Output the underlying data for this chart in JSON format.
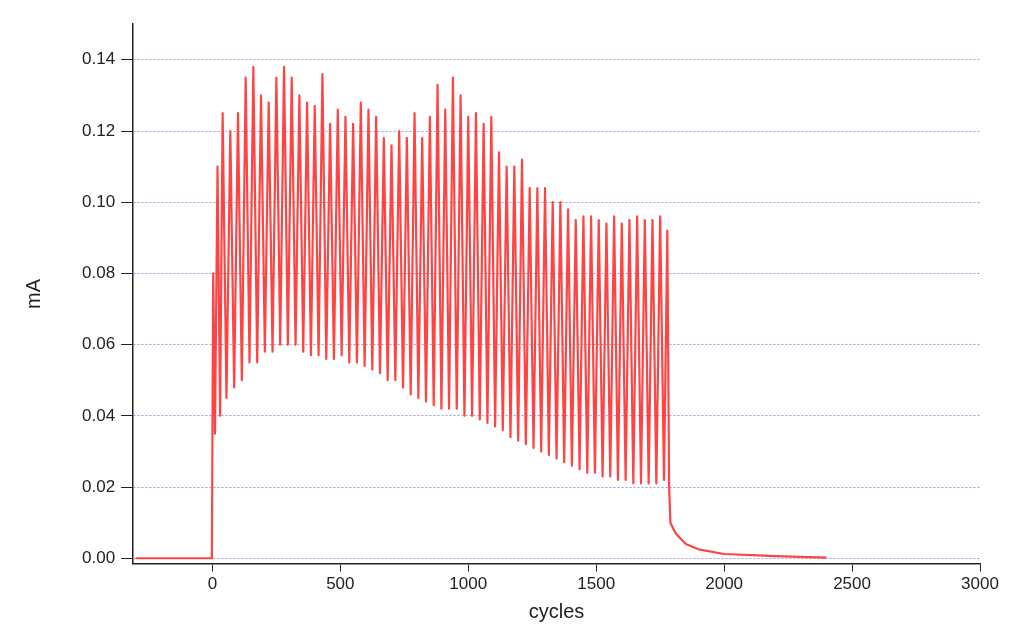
{
  "chart_data": {
    "type": "line",
    "xlabel": "cycles",
    "ylabel": "mA",
    "xlim": [
      -310,
      3000
    ],
    "xticks": [
      0,
      500,
      1000,
      1500,
      2000,
      2500,
      3000
    ],
    "ylim": [
      -0.0015,
      0.15
    ],
    "yticks": [
      {
        "value": 0,
        "label": "0.00"
      },
      {
        "value": 0.02,
        "label": "0.02"
      },
      {
        "value": 0.04,
        "label": "0.04"
      },
      {
        "value": 0.06,
        "label": "0.06"
      },
      {
        "value": 0.08,
        "label": "0.08"
      },
      {
        "value": 0.1,
        "label": "0.10"
      },
      {
        "value": 0.12,
        "label": "0.12"
      },
      {
        "value": 0.14,
        "label": "0.14"
      }
    ],
    "grid": "y",
    "legend": false,
    "marker": "none",
    "line_style": "solid",
    "series": [
      {
        "color": "#ff4444",
        "x": [
          -300,
          -2,
          3,
          10,
          20,
          30,
          40,
          55,
          70,
          85,
          100,
          115,
          130,
          145,
          160,
          175,
          190,
          205,
          220,
          235,
          250,
          265,
          280,
          295,
          310,
          325,
          340,
          355,
          370,
          385,
          400,
          415,
          430,
          445,
          460,
          475,
          490,
          505,
          520,
          535,
          550,
          565,
          580,
          595,
          610,
          625,
          640,
          655,
          670,
          685,
          700,
          715,
          730,
          745,
          760,
          775,
          790,
          805,
          820,
          835,
          850,
          865,
          880,
          895,
          910,
          925,
          940,
          955,
          970,
          985,
          1000,
          1015,
          1030,
          1045,
          1060,
          1075,
          1090,
          1105,
          1120,
          1135,
          1150,
          1165,
          1180,
          1195,
          1210,
          1225,
          1240,
          1255,
          1270,
          1285,
          1300,
          1315,
          1330,
          1345,
          1360,
          1375,
          1390,
          1405,
          1420,
          1435,
          1450,
          1465,
          1480,
          1495,
          1510,
          1525,
          1540,
          1555,
          1570,
          1585,
          1600,
          1615,
          1630,
          1645,
          1660,
          1675,
          1690,
          1705,
          1720,
          1735,
          1750,
          1765,
          1778,
          1785,
          1790,
          1810,
          1850,
          1900,
          2000,
          2200,
          2400
        ],
        "values": [
          0,
          0,
          0.08,
          0.035,
          0.11,
          0.04,
          0.125,
          0.045,
          0.12,
          0.048,
          0.125,
          0.05,
          0.135,
          0.055,
          0.138,
          0.055,
          0.13,
          0.058,
          0.128,
          0.058,
          0.135,
          0.06,
          0.138,
          0.06,
          0.135,
          0.06,
          0.13,
          0.058,
          0.128,
          0.057,
          0.127,
          0.057,
          0.136,
          0.056,
          0.122,
          0.056,
          0.126,
          0.057,
          0.124,
          0.055,
          0.122,
          0.055,
          0.128,
          0.054,
          0.126,
          0.053,
          0.124,
          0.052,
          0.118,
          0.05,
          0.116,
          0.05,
          0.12,
          0.048,
          0.118,
          0.046,
          0.125,
          0.045,
          0.118,
          0.044,
          0.124,
          0.043,
          0.133,
          0.042,
          0.126,
          0.042,
          0.135,
          0.042,
          0.13,
          0.04,
          0.124,
          0.04,
          0.125,
          0.039,
          0.122,
          0.038,
          0.124,
          0.037,
          0.114,
          0.036,
          0.11,
          0.034,
          0.11,
          0.033,
          0.112,
          0.032,
          0.104,
          0.031,
          0.104,
          0.03,
          0.104,
          0.029,
          0.1,
          0.028,
          0.1,
          0.027,
          0.098,
          0.026,
          0.095,
          0.025,
          0.096,
          0.024,
          0.096,
          0.024,
          0.095,
          0.023,
          0.094,
          0.023,
          0.096,
          0.022,
          0.094,
          0.022,
          0.095,
          0.021,
          0.096,
          0.021,
          0.095,
          0.021,
          0.095,
          0.021,
          0.096,
          0.022,
          0.092,
          0.02,
          0.01,
          0.007,
          0.004,
          0.0025,
          0.0012,
          0.0006,
          0.0002
        ]
      }
    ]
  }
}
